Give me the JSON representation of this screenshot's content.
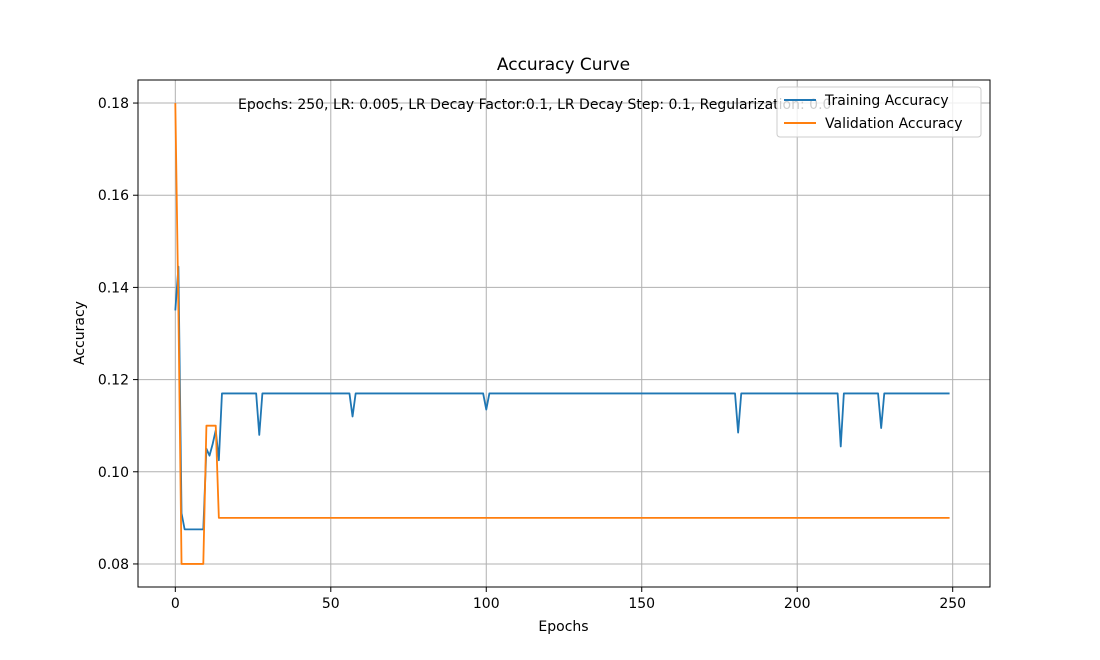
{
  "chart_data": {
    "type": "line",
    "title": "Accuracy Curve",
    "xlabel": "Epochs",
    "ylabel": "Accuracy",
    "annotation": "Epochs: 250, LR: 0.005, LR Decay Factor:0.1, LR Decay Step: 0.1, Regularization: 0.0",
    "xlim": [
      -12,
      262
    ],
    "ylim": [
      0.075,
      0.185
    ],
    "xticks": [
      0,
      50,
      100,
      150,
      200,
      250
    ],
    "yticks": [
      0.08,
      0.1,
      0.12,
      0.14,
      0.16,
      0.18
    ],
    "xtick_labels": [
      "0",
      "50",
      "100",
      "150",
      "200",
      "250"
    ],
    "ytick_labels": [
      "0.08",
      "0.10",
      "0.12",
      "0.14",
      "0.16",
      "0.18"
    ],
    "grid": true,
    "legend_position": "top-right",
    "series": [
      {
        "name": "Training Accuracy",
        "color": "#1f77b4",
        "points": [
          [
            0,
            0.135
          ],
          [
            1,
            0.1445
          ],
          [
            2,
            0.091
          ],
          [
            3,
            0.0875
          ],
          [
            4,
            0.0875
          ],
          [
            5,
            0.0875
          ],
          [
            6,
            0.0875
          ],
          [
            7,
            0.0875
          ],
          [
            8,
            0.0875
          ],
          [
            9,
            0.0875
          ],
          [
            10,
            0.105
          ],
          [
            11,
            0.1035
          ],
          [
            12,
            0.106
          ],
          [
            13,
            0.109
          ],
          [
            14,
            0.1025
          ],
          [
            15,
            0.117
          ],
          [
            26,
            0.117
          ],
          [
            27,
            0.108
          ],
          [
            28,
            0.117
          ],
          [
            56,
            0.117
          ],
          [
            57,
            0.112
          ],
          [
            58,
            0.117
          ],
          [
            99,
            0.117
          ],
          [
            100,
            0.1135
          ],
          [
            101,
            0.117
          ],
          [
            180,
            0.117
          ],
          [
            181,
            0.1085
          ],
          [
            182,
            0.117
          ],
          [
            213,
            0.117
          ],
          [
            214,
            0.1055
          ],
          [
            215,
            0.117
          ],
          [
            226,
            0.117
          ],
          [
            227,
            0.1095
          ],
          [
            228,
            0.117
          ],
          [
            249,
            0.117
          ]
        ]
      },
      {
        "name": "Validation Accuracy",
        "color": "#ff7f0e",
        "points": [
          [
            0,
            0.18
          ],
          [
            1,
            0.135
          ],
          [
            2,
            0.08
          ],
          [
            3,
            0.08
          ],
          [
            9,
            0.08
          ],
          [
            10,
            0.11
          ],
          [
            13,
            0.11
          ],
          [
            14,
            0.09
          ],
          [
            249,
            0.09
          ]
        ]
      }
    ]
  }
}
